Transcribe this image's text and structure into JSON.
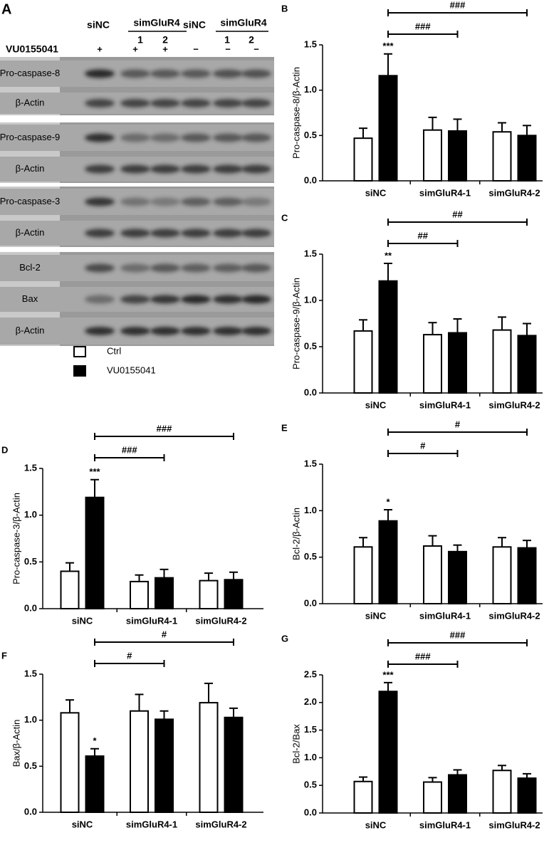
{
  "blot": {
    "panel": "A",
    "lanes_header": [
      "siNC",
      "simGluR4",
      "1",
      "2",
      "siNC",
      "simGluR4",
      "1",
      "2"
    ],
    "treatment_label": "VU0155041",
    "treatment": [
      "+",
      "+",
      "+",
      "−",
      "−",
      "−"
    ],
    "blots": [
      "Pro-caspase-8",
      "β-Actin",
      "Pro-caspase-9",
      "β-Actin",
      "Pro-caspase-3",
      "β-Actin",
      "Bcl-2",
      "Bax",
      "β-Actin"
    ]
  },
  "legend": [
    {
      "name": "Ctrl",
      "color": "#ffffff"
    },
    {
      "name": "VU0155041",
      "color": "#000000"
    }
  ],
  "chart_data": [
    {
      "type": "bar",
      "panel": "B",
      "y_label": "Pro-caspase-8/β-Actin",
      "categories": [
        "siNC",
        "simGluR4-1",
        "simGluR4-2"
      ],
      "ylim": [
        0,
        1.5
      ],
      "yticks": [
        {
          "value": 0,
          "label": "0.0"
        },
        0.5,
        {
          "value": 1,
          "label": "1.0"
        },
        1.5
      ],
      "series": [
        {
          "values": [
            0.47,
            0.56,
            0.54
          ],
          "errors": [
            0.11,
            0.14,
            0.1
          ]
        },
        {
          "values": [
            1.16,
            0.55,
            0.5
          ],
          "errors": [
            0.24,
            0.13,
            0.11
          ]
        }
      ],
      "significance": "***",
      "brackets": [
        "###",
        "###"
      ]
    },
    {
      "type": "bar",
      "panel": "C",
      "y_label": "Pro-caspase-9/β-Actin",
      "categories": [
        "siNC",
        "simGluR4-1",
        "simGluR4-2"
      ],
      "ylim": [
        0,
        1.5
      ],
      "yticks": [
        {
          "value": 0,
          "label": "0.0"
        },
        0.5,
        {
          "value": 1,
          "label": "1.0"
        },
        1.5
      ],
      "series": [
        {
          "values": [
            0.67,
            0.63,
            0.68
          ],
          "errors": [
            0.12,
            0.13,
            0.14
          ]
        },
        {
          "values": [
            1.21,
            0.65,
            0.62
          ],
          "errors": [
            0.19,
            0.15,
            0.13
          ]
        }
      ],
      "significance": "**",
      "brackets": [
        "##",
        "##"
      ]
    },
    {
      "type": "bar",
      "panel": "D",
      "y_label": "Pro-caspase-3/β-Actin",
      "categories": [
        "siNC",
        "simGluR4-1",
        "simGluR4-2"
      ],
      "ylim": [
        0,
        1.5
      ],
      "yticks": [
        {
          "value": 0,
          "label": "0.0"
        },
        0.5,
        {
          "value": 1,
          "label": "1.0"
        },
        1.5
      ],
      "series": [
        {
          "values": [
            0.4,
            0.29,
            0.3
          ],
          "errors": [
            0.09,
            0.07,
            0.08
          ]
        },
        {
          "values": [
            1.19,
            0.33,
            0.31
          ],
          "errors": [
            0.19,
            0.09,
            0.08
          ]
        }
      ],
      "significance": "***",
      "brackets": [
        "###",
        "###"
      ]
    },
    {
      "type": "bar",
      "panel": "E",
      "y_label": "Bcl-2/β-Actin",
      "categories": [
        "siNC",
        "simGluR4-1",
        "simGluR4-2"
      ],
      "ylim": [
        0,
        1.5
      ],
      "yticks": [
        {
          "value": 0,
          "label": "0.0"
        },
        0.5,
        {
          "value": 1,
          "label": "1.0"
        },
        1.5
      ],
      "series": [
        {
          "values": [
            0.61,
            0.62,
            0.61
          ],
          "errors": [
            0.1,
            0.11,
            0.1
          ]
        },
        {
          "values": [
            0.89,
            0.56,
            0.6
          ],
          "errors": [
            0.12,
            0.07,
            0.08
          ]
        }
      ],
      "significance": "*",
      "brackets": [
        "#",
        "#"
      ]
    },
    {
      "type": "bar",
      "panel": "F",
      "y_label": "Bax/β-Actin",
      "categories": [
        "siNC",
        "simGluR4-1",
        "simGluR4-2"
      ],
      "ylim": [
        0,
        1.5
      ],
      "yticks": [
        {
          "value": 0,
          "label": "0.0"
        },
        0.5,
        {
          "value": 1,
          "label": "1.0"
        },
        1.5
      ],
      "series": [
        {
          "values": [
            1.08,
            1.1,
            1.19
          ],
          "errors": [
            0.14,
            0.18,
            0.21
          ]
        },
        {
          "values": [
            0.61,
            1.01,
            1.03
          ],
          "errors": [
            0.08,
            0.09,
            0.1
          ]
        }
      ],
      "significance": "*",
      "brackets": [
        "#",
        "#"
      ]
    },
    {
      "type": "bar",
      "panel": "G",
      "y_label": "Bcl-2/Bax",
      "categories": [
        "siNC",
        "simGluR4-1",
        "simGluR4-2"
      ],
      "ylim": [
        0,
        2.5
      ],
      "yticks": [
        {
          "value": 0,
          "label": "0.0"
        },
        0.5,
        {
          "value": 1,
          "label": "1.0"
        },
        1.5,
        {
          "value": 2,
          "label": "2.0"
        },
        2.5
      ],
      "series": [
        {
          "values": [
            0.57,
            0.56,
            0.77
          ],
          "errors": [
            0.08,
            0.08,
            0.09
          ]
        },
        {
          "values": [
            2.2,
            0.69,
            0.63
          ],
          "errors": [
            0.16,
            0.09,
            0.08
          ]
        }
      ],
      "significance": "***",
      "brackets": [
        "###",
        "###"
      ]
    }
  ]
}
